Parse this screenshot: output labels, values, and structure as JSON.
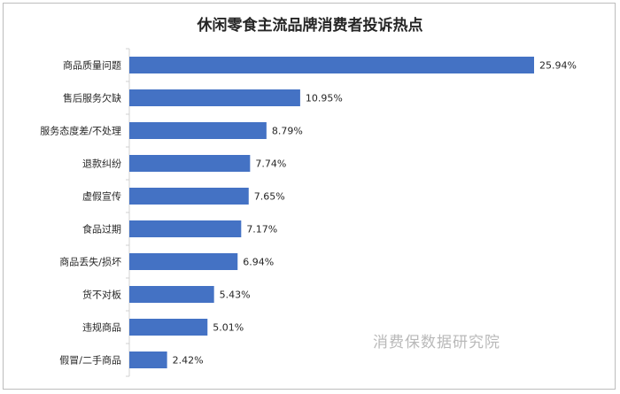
{
  "chart_data": {
    "type": "bar",
    "orientation": "horizontal",
    "title": "休闲零食主流品牌消费者投诉热点",
    "categories": [
      "商品质量问题",
      "售后服务欠缺",
      "服务态度差/不处理",
      "退款纠纷",
      "虚假宣传",
      "食品过期",
      "商品丢失/损坏",
      "货不对板",
      "违规商品",
      "假冒/二手商品"
    ],
    "values": [
      25.94,
      10.95,
      8.79,
      7.74,
      7.65,
      7.17,
      6.94,
      5.43,
      5.01,
      2.42
    ],
    "value_labels": [
      "25.94%",
      "10.95%",
      "8.79%",
      "7.74%",
      "7.65%",
      "7.17%",
      "6.94%",
      "5.43%",
      "5.01%",
      "2.42%"
    ],
    "value_unit": "%",
    "xlim": [
      0,
      26
    ],
    "grid": false,
    "bar_color": "#4472c4"
  },
  "watermark": "消费保数据研究院"
}
